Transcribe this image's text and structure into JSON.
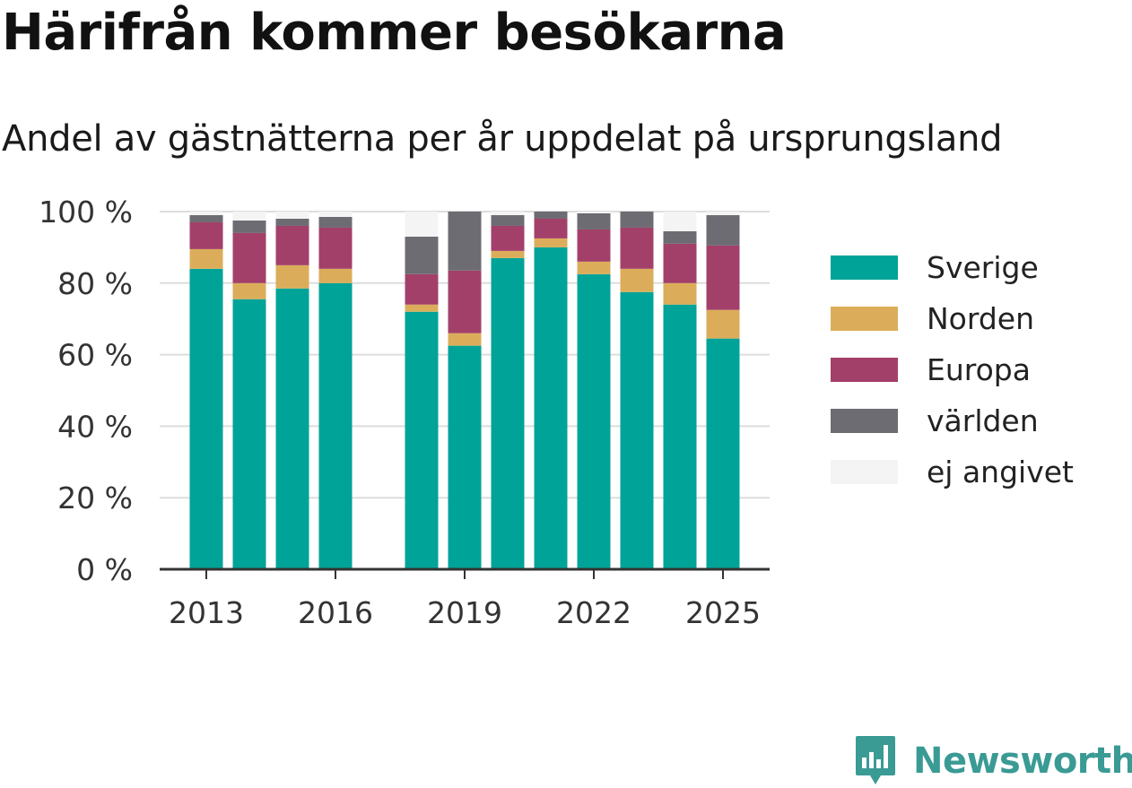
{
  "chart_data": {
    "type": "bar",
    "stacked": true,
    "title": "Härifrån kommer besökarna",
    "subtitle": "Andel av gästnätterna per år uppdelat på ursprungsland",
    "x": [
      2013,
      2014,
      2015,
      2016,
      2017,
      2018,
      2019,
      2020,
      2021,
      2022,
      2023,
      2024,
      2025
    ],
    "x_tick_labels": [
      "2013",
      "2016",
      "2019",
      "2022",
      "2025"
    ],
    "y_tick_labels": [
      "0 %",
      "20 %",
      "40 %",
      "60 %",
      "80 %",
      "100 %"
    ],
    "ylim": [
      0,
      100
    ],
    "grid": true,
    "legend_position": "right",
    "series": [
      {
        "name": "Sverige",
        "color": "#00a398",
        "values": [
          84,
          75.5,
          78.5,
          80,
          null,
          72,
          62.5,
          87,
          90,
          82.5,
          77.5,
          74,
          64.5
        ]
      },
      {
        "name": "Norden",
        "color": "#dbad5a",
        "values": [
          5.5,
          4.5,
          6.5,
          4,
          null,
          2,
          3.5,
          2,
          2.5,
          3.5,
          6.5,
          6,
          8
        ]
      },
      {
        "name": "Europa",
        "color": "#a3406a",
        "values": [
          7.5,
          14,
          11,
          11.5,
          null,
          8.5,
          17.5,
          7,
          5.5,
          9,
          11.5,
          11,
          18
        ]
      },
      {
        "name": "världen",
        "color": "#6e6c73",
        "values": [
          2,
          3.5,
          2,
          3,
          null,
          10.5,
          16.5,
          3,
          2,
          4.5,
          4.5,
          3.5,
          8.5
        ]
      },
      {
        "name": "ej angivet",
        "color": "#f5f4f4",
        "values": [
          1,
          2.5,
          2,
          1.5,
          null,
          7,
          0,
          1,
          0,
          0.5,
          0,
          5.5,
          1
        ]
      }
    ]
  },
  "brand": {
    "name": "Newsworthy"
  }
}
